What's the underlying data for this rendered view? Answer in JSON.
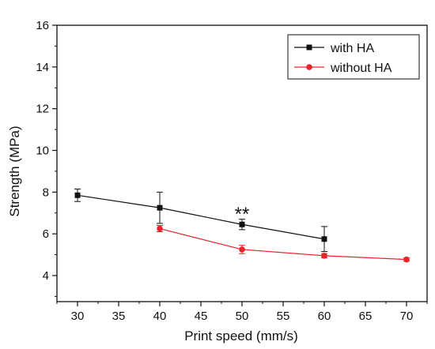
{
  "chart_data": {
    "type": "line",
    "title": "",
    "xlabel": "Print speed (mm/s)",
    "ylabel": "Strength (MPa)",
    "xlim": [
      27.5,
      72.5
    ],
    "ylim": [
      2.75,
      16
    ],
    "xticks": [
      30,
      35,
      40,
      45,
      50,
      55,
      60,
      65,
      70
    ],
    "yticks": [
      4,
      6,
      8,
      10,
      12,
      14,
      16
    ],
    "grid": false,
    "legend_position": "top-right",
    "series": [
      {
        "name": "with HA",
        "color": "#111111",
        "marker": "square",
        "x": [
          30,
          40,
          50,
          60
        ],
        "y": [
          7.85,
          7.25,
          6.45,
          5.75
        ],
        "err": [
          0.3,
          0.75,
          0.25,
          0.6
        ]
      },
      {
        "name": "without HA",
        "color": "#e8242a",
        "marker": "circle",
        "x": [
          40,
          50,
          60,
          70
        ],
        "y": [
          6.25,
          5.25,
          4.95,
          4.77
        ],
        "err": [
          0.15,
          0.2,
          0.1,
          0.08
        ]
      }
    ],
    "annotations": [
      {
        "text": "**",
        "x": 50,
        "y": 7.1
      }
    ]
  }
}
